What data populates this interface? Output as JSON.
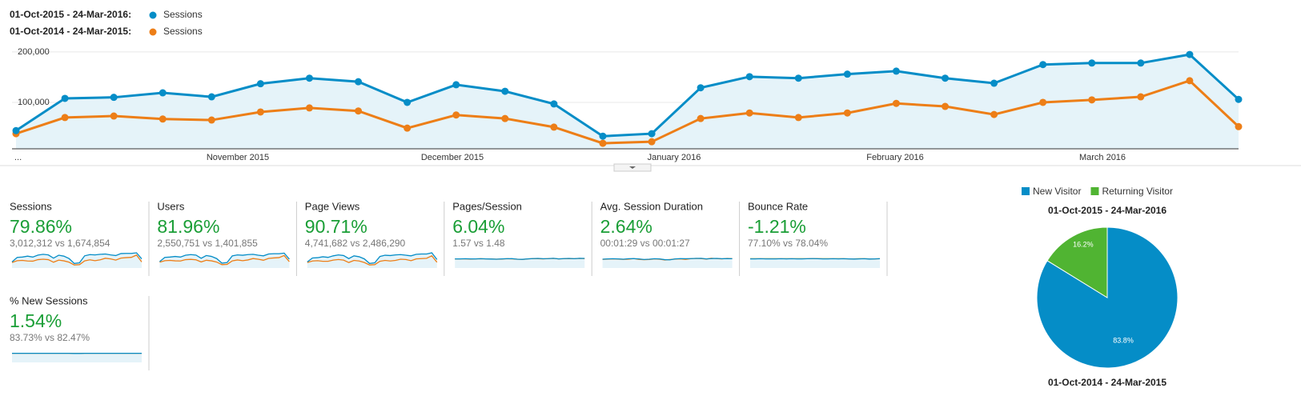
{
  "chart_data": [
    {
      "type": "line",
      "legend": [
        {
          "period": "01-Oct-2015 - 24-Mar-2016:"
        },
        {
          "period": "01-Oct-2014 - 24-Mar-2015:"
        }
      ],
      "categories": [
        null,
        null,
        null,
        null,
        null,
        null,
        null,
        null,
        null,
        null,
        null,
        null,
        null,
        null,
        null,
        null,
        null,
        null,
        null,
        null,
        null,
        null,
        null,
        null,
        null,
        null
      ],
      "x_labels": [
        "...",
        "November 2015",
        "December 2015",
        "January 2016",
        "February 2016",
        "March 2016"
      ],
      "series": [
        {
          "name": "Sessions",
          "color": "#058dc7",
          "values": [
            44000,
            108000,
            110000,
            119000,
            111000,
            137000,
            148000,
            141000,
            100000,
            135000,
            122000,
            97000,
            33000,
            38000,
            129000,
            151000,
            148000,
            156000,
            162000,
            148000,
            138000,
            175000,
            178000,
            178000,
            195000,
            106000
          ]
        },
        {
          "name": "Sessions",
          "color": "#ed7e17",
          "values": [
            38000,
            70000,
            73000,
            67000,
            65000,
            81000,
            89000,
            83000,
            49000,
            75000,
            68000,
            51000,
            19000,
            22000,
            68000,
            79000,
            70000,
            79000,
            98000,
            92000,
            76000,
            100000,
            105000,
            111000,
            143000,
            52000
          ]
        }
      ],
      "ylim": [
        8000,
        211000
      ],
      "yticks": [
        {
          "value": 100000,
          "label": "100,000"
        },
        {
          "value": 200000,
          "label": "200,000"
        }
      ],
      "grid": true
    },
    {
      "type": "pie",
      "title": "01-Oct-2015 - 24-Mar-2016",
      "categories": [
        "New Visitor",
        "Returning Visitor"
      ],
      "values": [
        83.8,
        16.2
      ],
      "value_labels": [
        "83.8%",
        "16.2%"
      ],
      "colors": [
        "#058dc7",
        "#50b432"
      ],
      "footer": "01-Oct-2014 - 24-Mar-2015"
    }
  ],
  "metrics": [
    {
      "name": "Sessions",
      "change": "79.86%",
      "detail": "3,012,312 vs 1,674,854",
      "sparkline": {
        "current": [
          40,
          70,
          72,
          78,
          72,
          85,
          90,
          86,
          65,
          84,
          78,
          62,
          30,
          34,
          80,
          88,
          86,
          90,
          92,
          86,
          82,
          95,
          96,
          96,
          100,
          60
        ],
        "previous": [
          36,
          48,
          50,
          46,
          45,
          55,
          58,
          55,
          38,
          52,
          47,
          38,
          20,
          22,
          47,
          54,
          48,
          54,
          64,
          60,
          52,
          65,
          68,
          70,
          85,
          40
        ]
      }
    },
    {
      "name": "Users",
      "change": "81.96%",
      "detail": "2,550,751 vs 1,401,855",
      "sparkline": {
        "current": [
          42,
          70,
          72,
          76,
          72,
          84,
          88,
          85,
          64,
          82,
          76,
          62,
          32,
          36,
          80,
          86,
          84,
          88,
          90,
          84,
          80,
          92,
          94,
          94,
          98,
          58
        ],
        "previous": [
          38,
          48,
          50,
          47,
          46,
          55,
          57,
          54,
          40,
          51,
          47,
          39,
          22,
          24,
          47,
          53,
          48,
          53,
          62,
          58,
          51,
          63,
          66,
          68,
          82,
          42
        ]
      }
    },
    {
      "name": "Page Views",
      "change": "90.71%",
      "detail": "4,741,682 vs 2,486,290",
      "sparkline": {
        "current": [
          40,
          66,
          68,
          74,
          70,
          80,
          86,
          82,
          62,
          80,
          74,
          60,
          30,
          34,
          76,
          84,
          82,
          86,
          88,
          84,
          80,
          90,
          92,
          92,
          100,
          56
        ],
        "previous": [
          36,
          46,
          48,
          44,
          44,
          52,
          56,
          52,
          36,
          50,
          46,
          36,
          20,
          22,
          44,
          50,
          46,
          50,
          58,
          56,
          48,
          60,
          62,
          64,
          80,
          38
        ]
      }
    },
    {
      "name": "Pages/Session",
      "change": "6.04%",
      "detail": "1.57 vs 1.48",
      "sparkline": {
        "current": [
          60,
          60,
          61,
          60,
          60,
          61,
          60,
          59,
          58,
          60,
          61,
          62,
          58,
          57,
          60,
          62,
          63,
          61,
          62,
          64,
          60,
          62,
          63,
          61,
          64,
          63
        ],
        "previous": [
          60,
          60,
          60,
          59,
          60,
          61,
          60,
          60,
          58,
          59,
          61,
          60,
          58,
          56,
          60,
          62,
          61,
          60,
          62,
          63,
          60,
          61,
          62,
          61,
          63,
          62
        ]
      }
    },
    {
      "name": "Avg. Session Duration",
      "change": "2.64%",
      "detail": "00:01:29 vs 00:01:27",
      "sparkline": {
        "current": [
          58,
          60,
          61,
          60,
          58,
          61,
          62,
          60,
          56,
          58,
          61,
          60,
          55,
          54,
          60,
          62,
          61,
          62,
          63,
          64,
          60,
          62,
          63,
          61,
          62,
          61
        ],
        "previous": [
          57,
          59,
          60,
          59,
          57,
          58,
          62,
          57,
          55,
          56,
          60,
          58,
          53,
          56,
          59,
          60,
          57,
          61,
          63,
          62,
          59,
          64,
          62,
          60,
          63,
          62
        ]
      }
    },
    {
      "name": "Bounce Rate",
      "change": "-1.21%",
      "detail": "77.10% vs 78.04%",
      "sparkline": {
        "current": [
          60,
          60,
          61,
          60,
          60,
          60,
          61,
          60,
          61,
          60,
          60,
          61,
          62,
          61,
          60,
          60,
          61,
          60,
          61,
          60,
          59,
          60,
          61,
          59,
          60,
          61
        ],
        "previous": [
          61,
          61,
          61,
          61,
          61,
          61,
          61,
          61,
          61,
          61,
          61,
          61,
          62,
          62,
          61,
          61,
          61,
          61,
          61,
          60,
          60,
          61,
          61,
          60,
          60,
          61
        ]
      }
    },
    {
      "name": "% New Sessions",
      "change": "1.54%",
      "detail": "83.73% vs 82.47%",
      "sparkline": {
        "current": [
          60,
          60,
          60,
          60,
          60,
          60,
          60,
          60,
          60,
          60,
          60,
          60,
          59,
          59,
          60,
          60,
          60,
          60,
          60,
          60,
          60,
          60,
          60,
          60,
          60,
          60
        ],
        "previous": [
          60,
          60,
          60,
          60,
          60,
          60,
          60,
          60,
          60,
          60,
          60,
          60,
          59,
          59,
          60,
          60,
          60,
          60,
          60,
          60,
          60,
          60,
          60,
          60,
          60,
          60
        ]
      }
    }
  ]
}
